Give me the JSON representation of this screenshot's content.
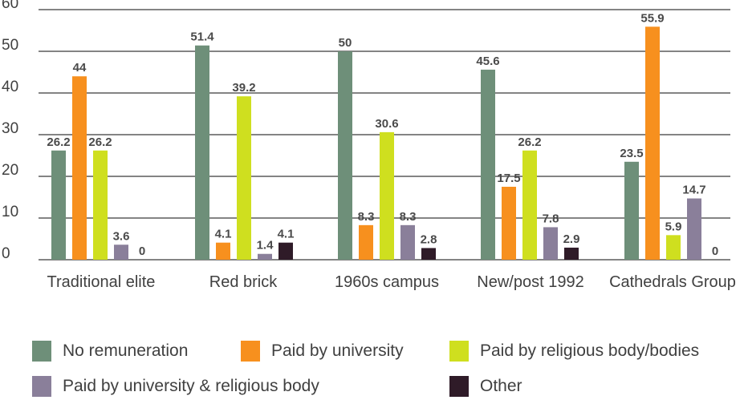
{
  "chart_data": {
    "type": "bar",
    "title": "",
    "xlabel": "",
    "ylabel": "",
    "ylim": [
      0,
      60
    ],
    "yticks": [
      0,
      10,
      20,
      30,
      40,
      50,
      60
    ],
    "grid": true,
    "legend_position": "bottom",
    "categories": [
      "Traditional elite",
      "Red brick",
      "1960s campus",
      "New/post 1992",
      "Cathedrals Group"
    ],
    "series": [
      {
        "name": "No remuneration",
        "color": "#6e8f79",
        "values": [
          26.2,
          51.4,
          50,
          45.6,
          23.5
        ]
      },
      {
        "name": "Paid by university",
        "color": "#f7901e",
        "values": [
          44,
          4.1,
          8.3,
          17.5,
          55.9
        ]
      },
      {
        "name": "Paid by religious body/bodies",
        "color": "#cfdf1f",
        "values": [
          26.2,
          39.2,
          30.6,
          26.2,
          5.9
        ]
      },
      {
        "name": "Paid by university & religious body",
        "color": "#8a7f9a",
        "values": [
          3.6,
          1.4,
          8.3,
          7.8,
          14.7
        ]
      },
      {
        "name": "Other",
        "color": "#2f1b28",
        "values": [
          0,
          4.1,
          2.8,
          2.9,
          0
        ]
      }
    ]
  }
}
